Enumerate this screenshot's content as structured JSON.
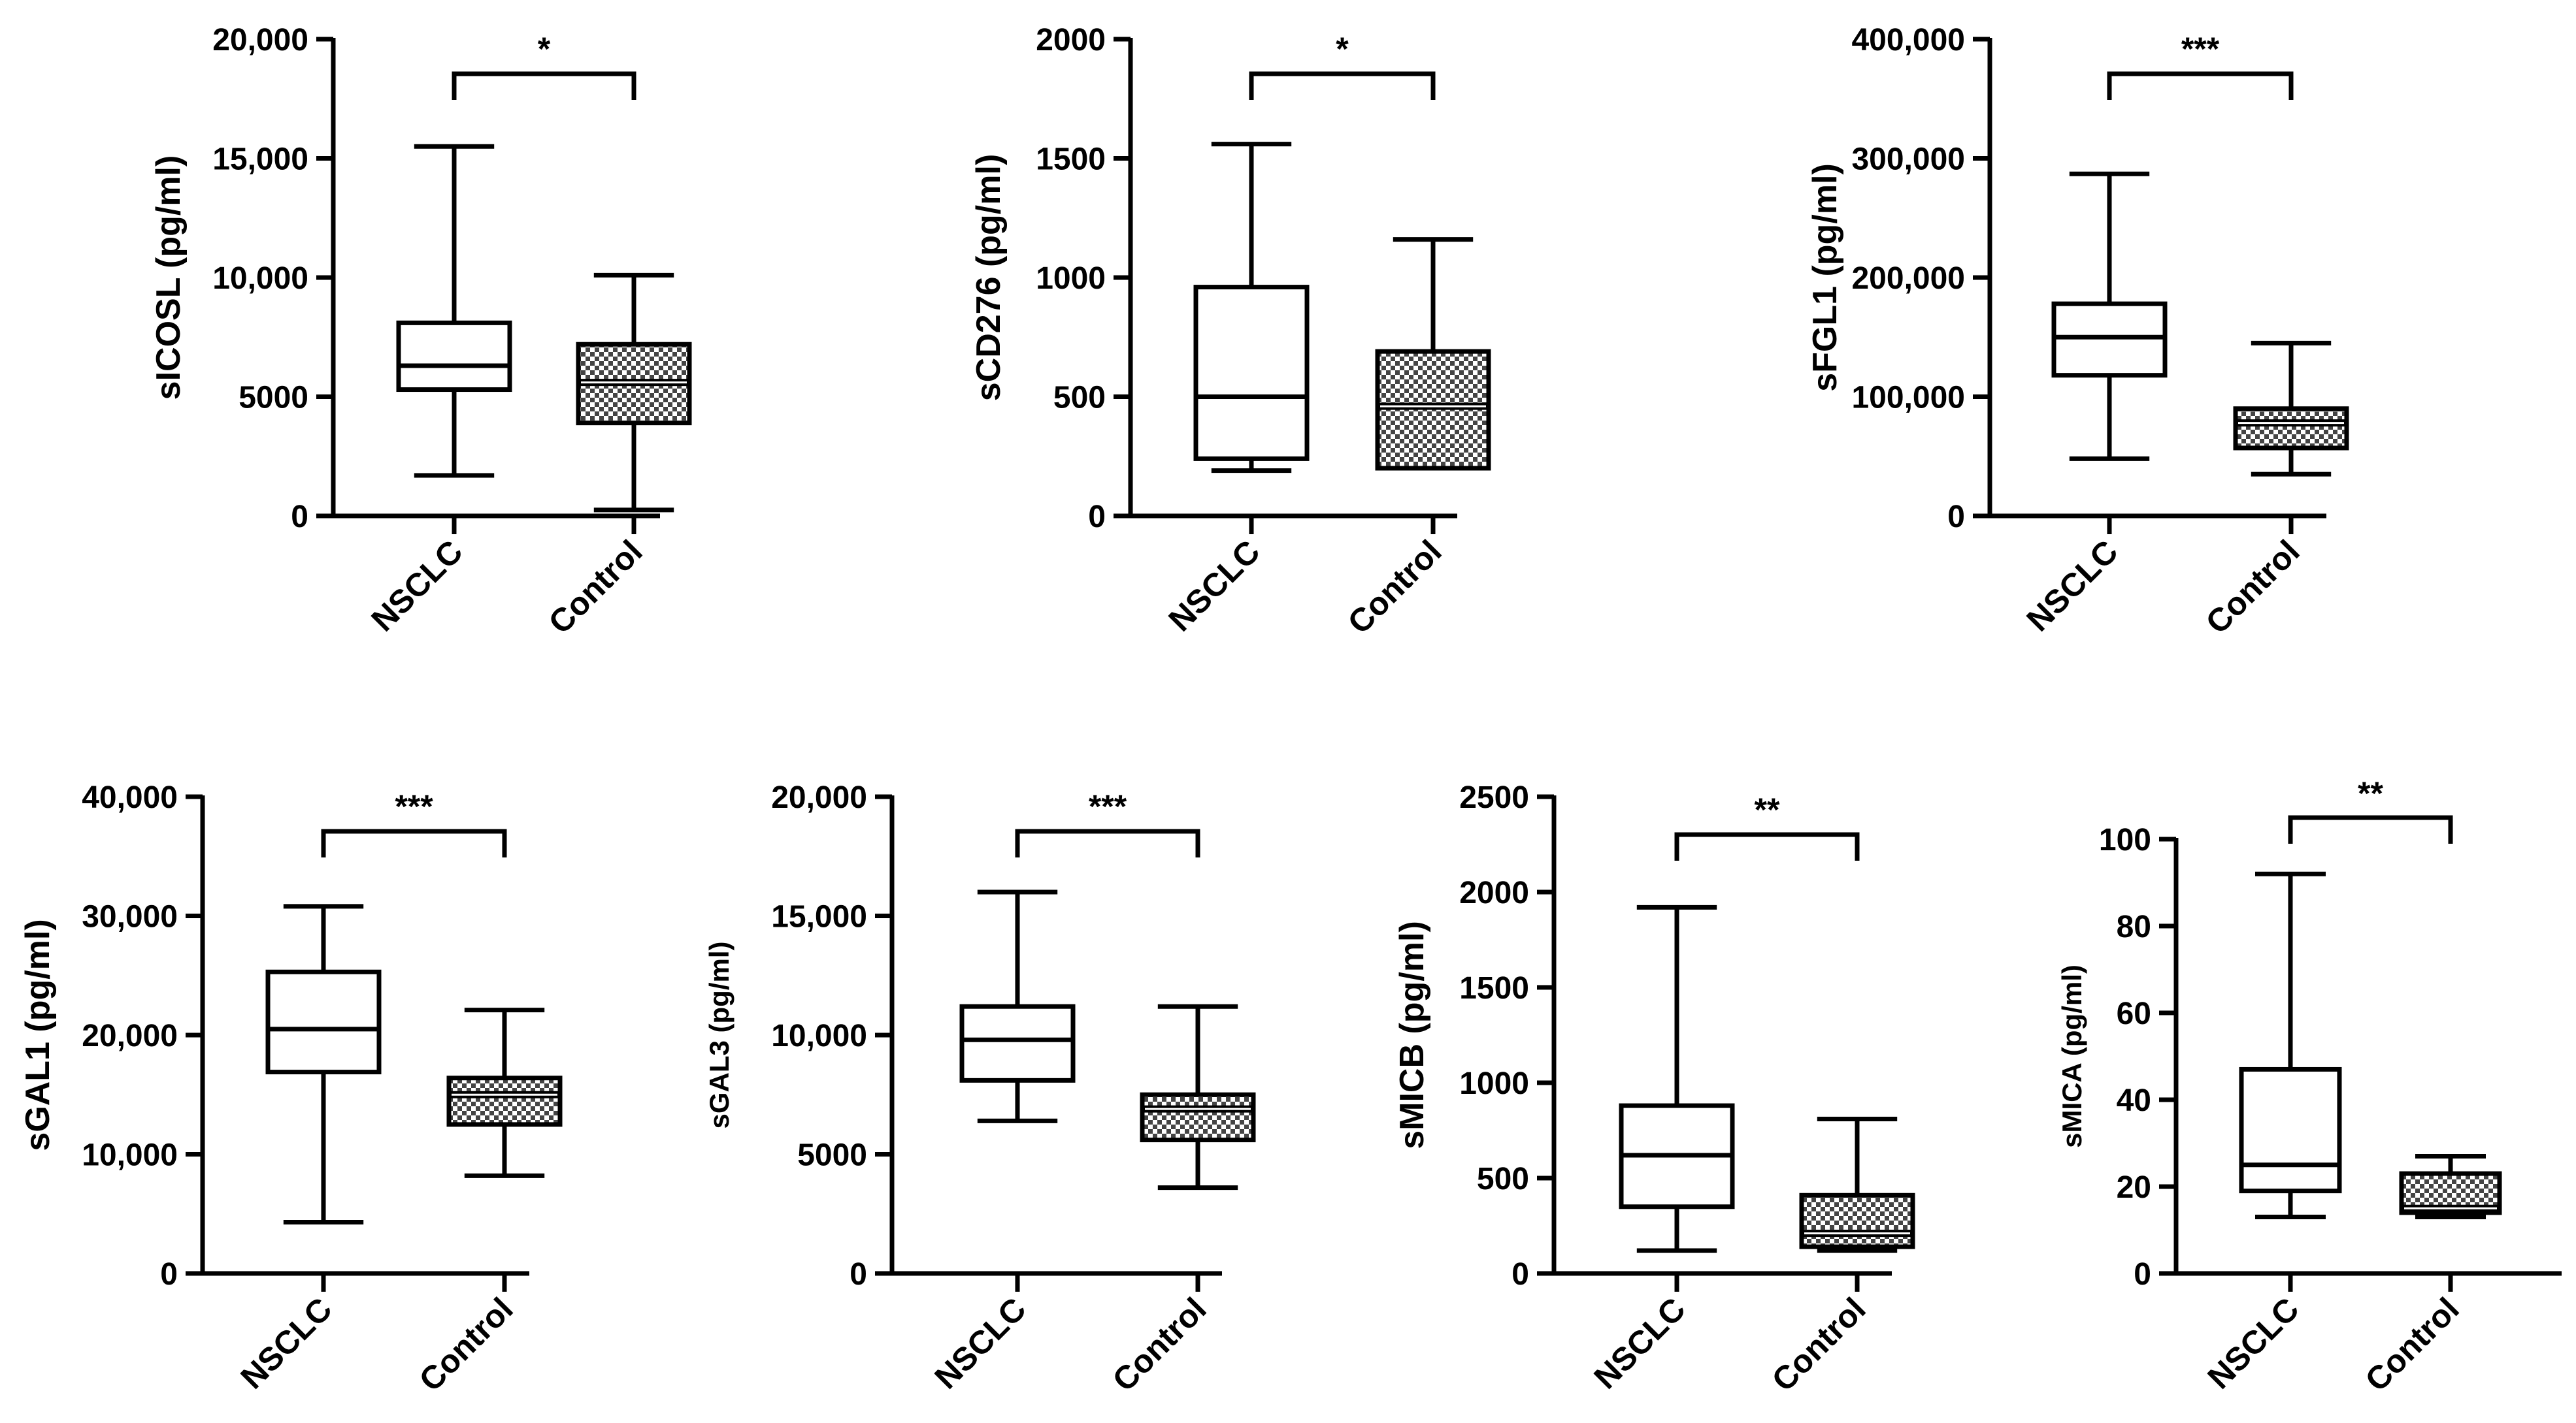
{
  "figure_title": "",
  "chart_data": [
    {
      "type": "boxplot",
      "title": "",
      "ylabel": "sICOSL (pg/ml)",
      "xlabel": "",
      "categories": [
        "NSCLC",
        "Control"
      ],
      "ylim": [
        0,
        20000
      ],
      "yticks": [
        0,
        5000,
        10000,
        15000,
        20000
      ],
      "ytick_labels": [
        "0",
        "5000",
        "10,000",
        "15,000",
        "20,000"
      ],
      "significance": "*",
      "series": [
        {
          "name": "NSCLC",
          "pattern": "white",
          "min": 1700,
          "q1": 5300,
          "median": 6300,
          "q3": 8100,
          "max": 15500
        },
        {
          "name": "Control",
          "pattern": "checkered",
          "min": 250,
          "q1": 3900,
          "median": 5600,
          "q3": 7200,
          "max": 10100
        }
      ]
    },
    {
      "type": "boxplot",
      "title": "",
      "ylabel": "sCD276 (pg/ml)",
      "xlabel": "",
      "categories": [
        "NSCLC",
        "Control"
      ],
      "ylim": [
        0,
        2000
      ],
      "yticks": [
        0,
        500,
        1000,
        1500,
        2000
      ],
      "ytick_labels": [
        "0",
        "500",
        "1000",
        "1500",
        "2000"
      ],
      "significance": "*",
      "series": [
        {
          "name": "NSCLC",
          "pattern": "white",
          "min": 190,
          "q1": 240,
          "median": 500,
          "q3": 960,
          "max": 1560
        },
        {
          "name": "Control",
          "pattern": "checkered",
          "min": 200,
          "q1": 200,
          "median": 460,
          "q3": 690,
          "max": 1160
        }
      ]
    },
    {
      "type": "boxplot",
      "title": "",
      "ylabel": "sFGL1  (pg/ml)",
      "xlabel": "",
      "categories": [
        "NSCLC",
        "Control"
      ],
      "ylim": [
        0,
        400000
      ],
      "yticks": [
        0,
        100000,
        200000,
        300000,
        400000
      ],
      "ytick_labels": [
        "0",
        "100,000",
        "200,000",
        "300,000",
        "400,000"
      ],
      "significance": "***",
      "series": [
        {
          "name": "NSCLC",
          "pattern": "white",
          "min": 48000,
          "q1": 118000,
          "median": 150000,
          "q3": 178000,
          "max": 287000
        },
        {
          "name": "Control",
          "pattern": "checkered",
          "min": 35000,
          "q1": 57000,
          "median": 78000,
          "q3": 90000,
          "max": 145000
        }
      ]
    },
    {
      "type": "boxplot",
      "title": "",
      "ylabel": "sGAL1 (pg/ml)",
      "xlabel": "",
      "categories": [
        "NSCLC",
        "Control"
      ],
      "ylim": [
        0,
        40000
      ],
      "yticks": [
        0,
        10000,
        20000,
        30000,
        40000
      ],
      "ytick_labels": [
        "0",
        "10,000",
        "20,000",
        "30,000",
        "40,000"
      ],
      "significance": "***",
      "series": [
        {
          "name": "NSCLC",
          "pattern": "white",
          "min": 4300,
          "q1": 16900,
          "median": 20500,
          "q3": 25300,
          "max": 30800
        },
        {
          "name": "Control",
          "pattern": "checkered",
          "min": 8200,
          "q1": 12500,
          "median": 15000,
          "q3": 16400,
          "max": 22100
        }
      ]
    },
    {
      "type": "boxplot",
      "title": "",
      "ylabel": "sGAL3 (pg/ml)",
      "xlabel": "",
      "categories": [
        "NSCLC",
        "Control"
      ],
      "ylim": [
        0,
        20000
      ],
      "yticks": [
        0,
        5000,
        10000,
        15000,
        20000
      ],
      "ytick_labels": [
        "0",
        "5000",
        "10,000",
        "15,000",
        "20,000"
      ],
      "significance": "***",
      "series": [
        {
          "name": "NSCLC",
          "pattern": "white",
          "min": 6400,
          "q1": 8100,
          "median": 9800,
          "q3": 11200,
          "max": 16000
        },
        {
          "name": "Control",
          "pattern": "checkered",
          "min": 3600,
          "q1": 5600,
          "median": 6900,
          "q3": 7500,
          "max": 11200
        }
      ]
    },
    {
      "type": "boxplot",
      "title": "",
      "ylabel": "sMICB (pg/ml)",
      "xlabel": "",
      "categories": [
        "NSCLC",
        "Control"
      ],
      "ylim": [
        0,
        2500
      ],
      "yticks": [
        0,
        500,
        1000,
        1500,
        2000,
        2500
      ],
      "ytick_labels": [
        "0",
        "500",
        "1000",
        "1500",
        "2000",
        "2500"
      ],
      "significance": "**",
      "series": [
        {
          "name": "NSCLC",
          "pattern": "white",
          "min": 120,
          "q1": 350,
          "median": 620,
          "q3": 880,
          "max": 1920
        },
        {
          "name": "Control",
          "pattern": "checkered",
          "min": 120,
          "q1": 140,
          "median": 210,
          "q3": 410,
          "max": 810
        }
      ]
    },
    {
      "type": "boxplot",
      "title": "",
      "ylabel": "sMICA (pg/ml)",
      "xlabel": "",
      "categories": [
        "NSCLC",
        "Control"
      ],
      "ylim": [
        0,
        100
      ],
      "yticks": [
        0,
        20,
        40,
        60,
        80,
        100
      ],
      "ytick_labels": [
        "0",
        "20",
        "40",
        "60",
        "80",
        "100"
      ],
      "significance": "**",
      "series": [
        {
          "name": "NSCLC",
          "pattern": "white",
          "min": 13,
          "q1": 19,
          "median": 25,
          "q3": 47,
          "max": 92
        },
        {
          "name": "Control",
          "pattern": "checkered",
          "min": 13,
          "q1": 14,
          "median": 15,
          "q3": 23,
          "max": 27
        }
      ]
    }
  ]
}
